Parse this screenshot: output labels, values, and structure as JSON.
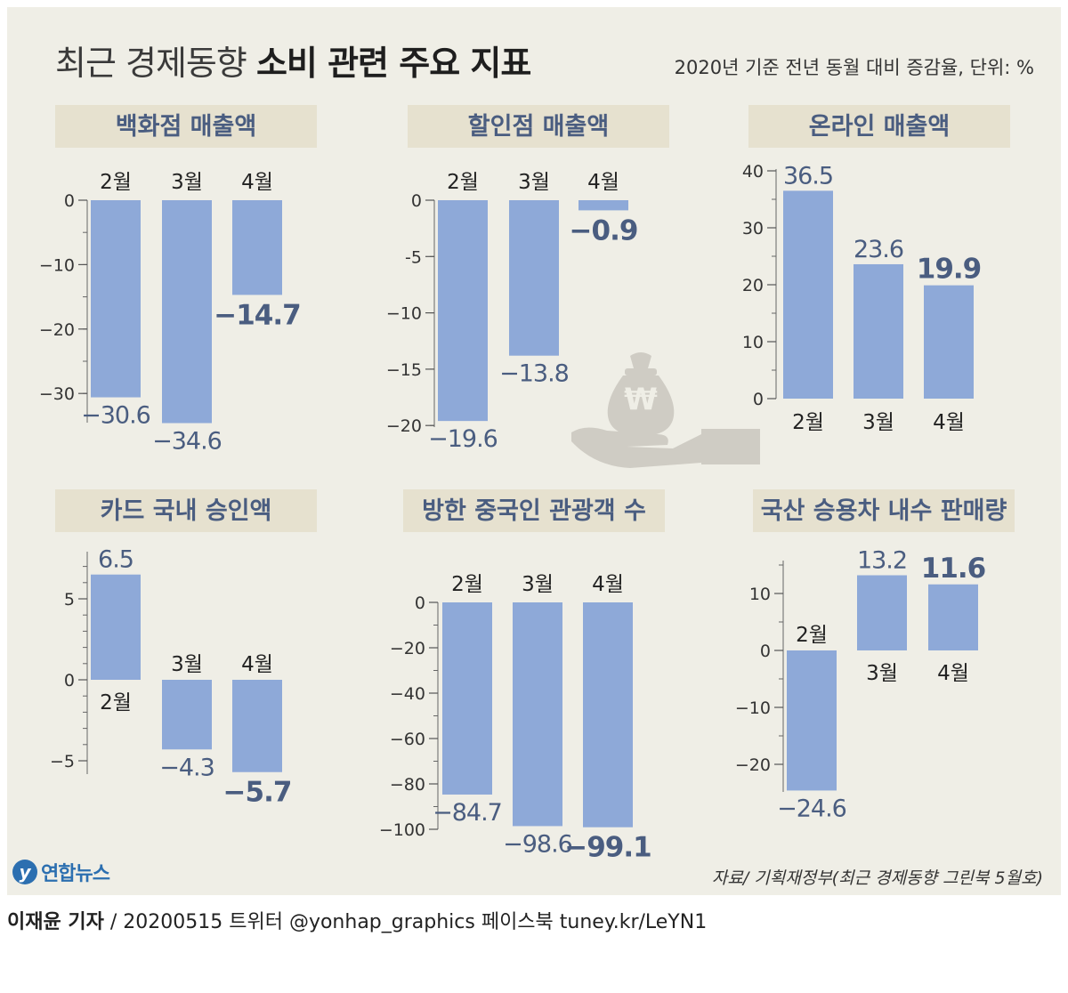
{
  "header": {
    "title_light": "최근 경제동향",
    "title_bold": "소비 관련 주요 지표",
    "unit_note": "2020년 기준 전년 동월 대비 증감율, 단위: %"
  },
  "footer": {
    "source": "자료/ 기획재정부(최근 경제동향 그린북 5월호)",
    "reporter": "이재윤 기자",
    "rest": " / 20200515   트위터 @yonhap_graphics  페이스북 tuney.kr/LeYN1",
    "logo_text": "연합뉴스"
  },
  "colors": {
    "bar": "#8ea9d8",
    "label": "#4a5d80",
    "title_box": "#e6e1cf",
    "panel": "#efeee6"
  },
  "icon": "money-bag-hand-icon",
  "chart_data": [
    {
      "type": "bar",
      "title": "백화점 매출액",
      "categories": [
        "2월",
        "3월",
        "4월"
      ],
      "values": [
        -30.6,
        -34.6,
        -14.7
      ],
      "value_labels": [
        "−30.6",
        "−34.6",
        "−14.7"
      ],
      "ylim": [
        -34.6,
        0
      ],
      "ticks": [
        0,
        -10,
        -20,
        -30
      ],
      "tick_labels": [
        "0",
        "−10",
        "−20",
        "−30"
      ],
      "minor_step": 5
    },
    {
      "type": "bar",
      "title": "할인점 매출액",
      "categories": [
        "2월",
        "3월",
        "4월"
      ],
      "values": [
        -19.6,
        -13.8,
        -0.9
      ],
      "value_labels": [
        "−19.6",
        "−13.8",
        "−0.9"
      ],
      "ylim": [
        -19.6,
        0
      ],
      "ticks": [
        0,
        -5,
        -10,
        -15,
        -20
      ],
      "tick_labels": [
        "0",
        "-5",
        "−10",
        "−15",
        "−20"
      ],
      "minor_step": 5
    },
    {
      "type": "bar",
      "title": "온라인 매출액",
      "categories": [
        "2월",
        "3월",
        "4월"
      ],
      "values": [
        36.5,
        23.6,
        19.9
      ],
      "value_labels": [
        "36.5",
        "23.6",
        "19.9"
      ],
      "ylim": [
        0,
        40
      ],
      "ticks": [
        0,
        10,
        20,
        30,
        40
      ],
      "tick_labels": [
        "0",
        "10",
        "20",
        "30",
        "40"
      ],
      "minor_step": 5
    },
    {
      "type": "bar",
      "title": "카드 국내 승인액",
      "categories": [
        "2월",
        "3월",
        "4월"
      ],
      "values": [
        6.5,
        -4.3,
        -5.7
      ],
      "value_labels": [
        "6.5",
        "−4.3",
        "−5.7"
      ],
      "ylim": [
        -5.7,
        6.5
      ],
      "ticks": [
        5,
        0,
        -5
      ],
      "tick_labels": [
        "5",
        "0",
        "−5"
      ],
      "minor_step": 1
    },
    {
      "type": "bar",
      "title": "방한 중국인 관광객 수",
      "categories": [
        "2월",
        "3월",
        "4월"
      ],
      "values": [
        -84.7,
        -98.6,
        -99.1
      ],
      "value_labels": [
        "−84.7",
        "−98.6",
        "−99.1"
      ],
      "ylim": [
        -100,
        0
      ],
      "ticks": [
        0,
        -20,
        -40,
        -60,
        -80,
        -100
      ],
      "tick_labels": [
        "0",
        "−20",
        "−40",
        "−60",
        "−80",
        "−100"
      ],
      "minor_step": 10
    },
    {
      "type": "bar",
      "title": "국산 승용차 내수 판매량",
      "categories": [
        "2월",
        "3월",
        "4월"
      ],
      "values": [
        -24.6,
        13.2,
        11.6
      ],
      "value_labels": [
        "−24.6",
        "13.2",
        "11.6"
      ],
      "ylim": [
        -24.6,
        13.2
      ],
      "ticks": [
        10,
        0,
        -10,
        -20
      ],
      "tick_labels": [
        "10",
        "0",
        "−10",
        "−20"
      ],
      "minor_step": 5
    }
  ]
}
